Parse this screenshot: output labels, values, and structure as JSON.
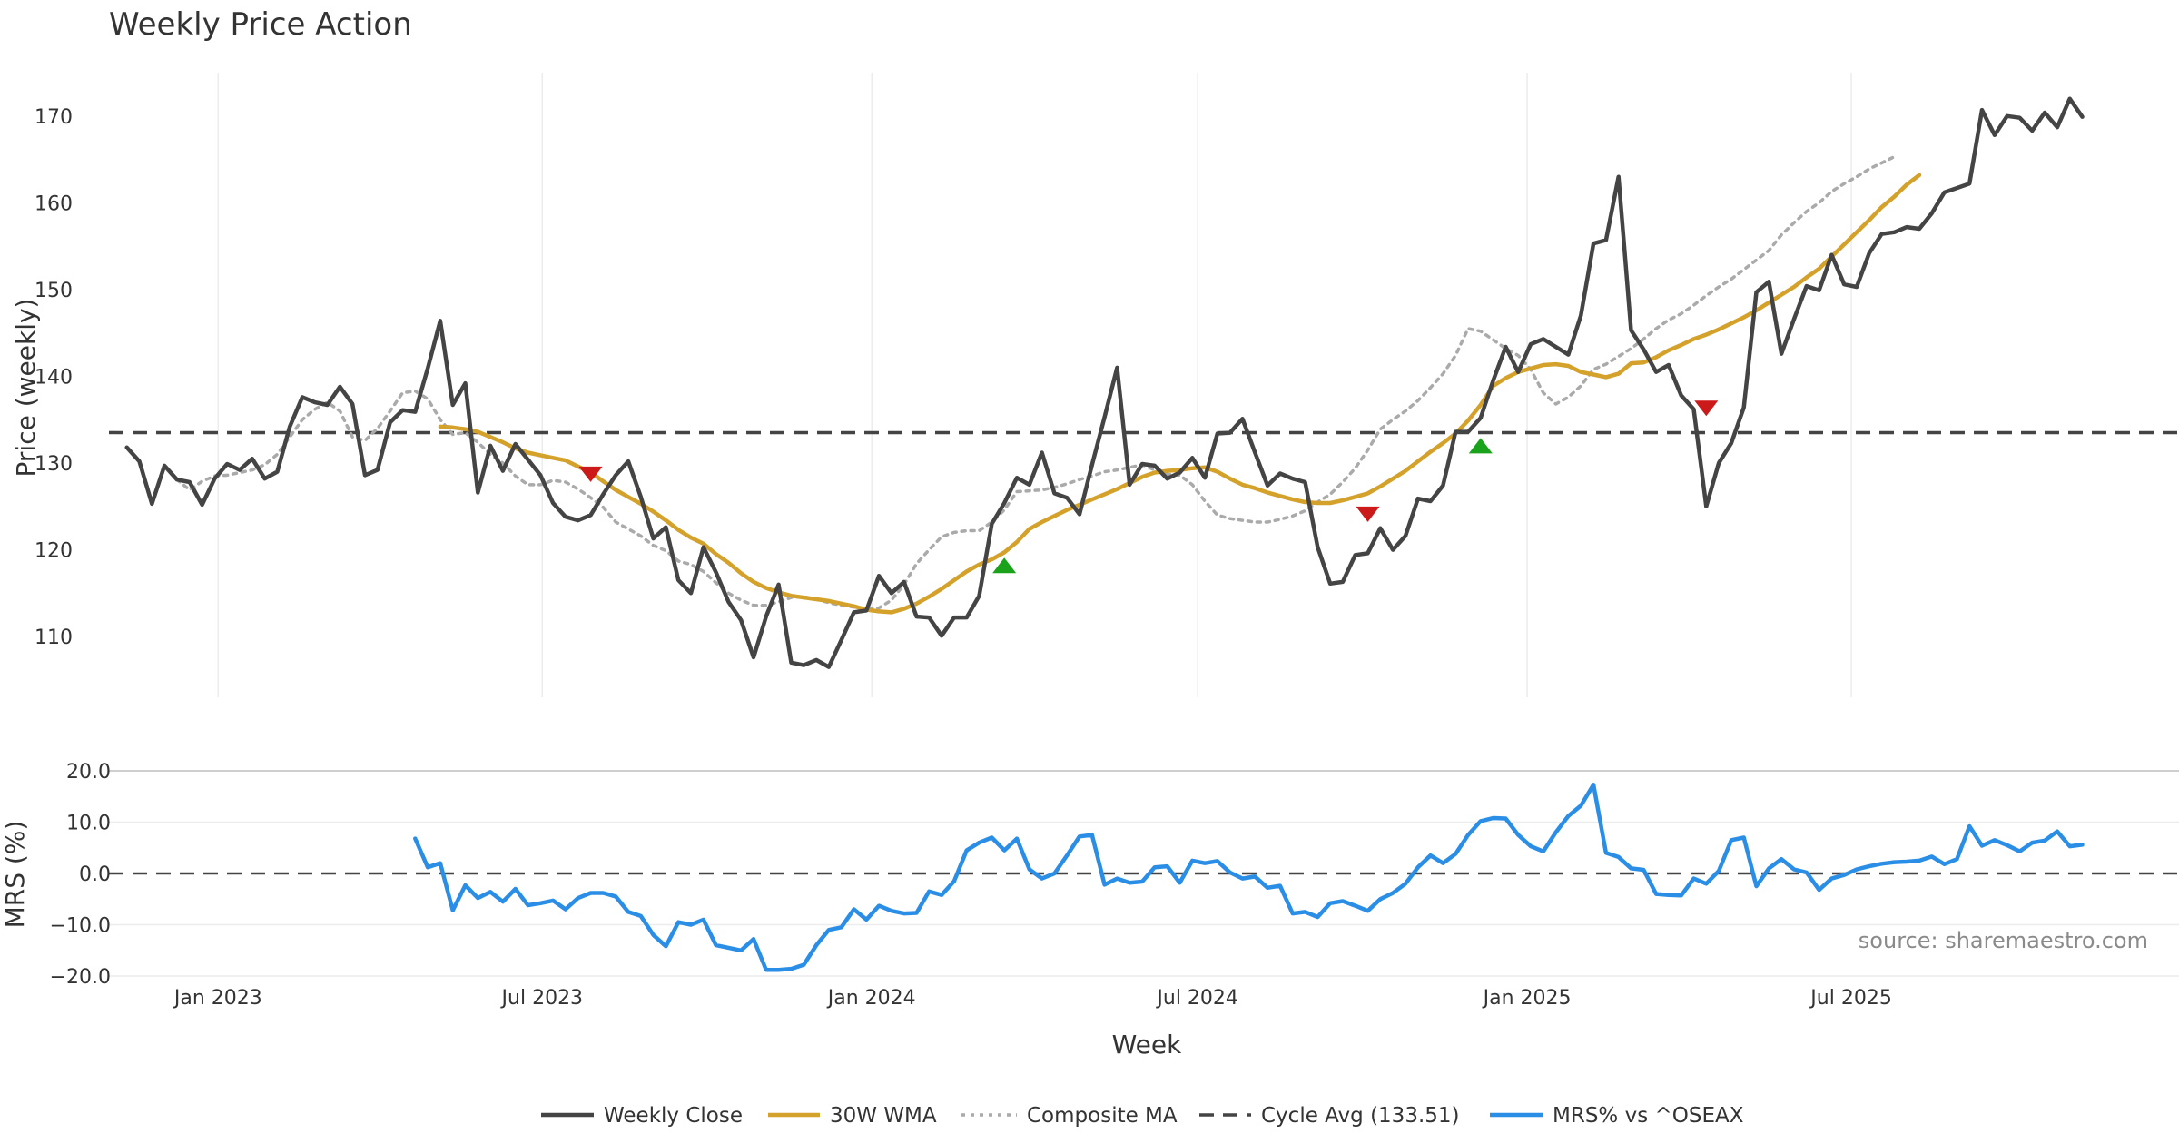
{
  "chart_data": [
    {
      "type": "line",
      "title": "Weekly Price Action",
      "ylabel": "Price (weekly)",
      "xlabel": "",
      "ylim": [
        103,
        175
      ],
      "yticks": [
        110,
        120,
        130,
        140,
        150,
        160,
        170
      ],
      "grid": "vertical",
      "series": [
        {
          "name": "Weekly Close",
          "color": "#444444",
          "style": "solid",
          "x_start": "2022-11-11",
          "step_days": 7,
          "values": [
            131.8,
            130.2,
            125.3,
            129.7,
            128.1,
            127.8,
            125.2,
            128.2,
            129.9,
            129.2,
            130.5,
            128.2,
            129.0,
            134.2,
            137.6,
            137.0,
            136.7,
            138.8,
            136.8,
            128.6,
            129.2,
            134.7,
            136.1,
            135.9,
            140.9,
            146.4,
            136.7,
            139.2,
            126.6,
            132.0,
            129.1,
            132.2,
            130.4,
            128.6,
            125.4,
            123.8,
            123.4,
            124.0,
            126.4,
            128.6,
            130.2,
            126.1,
            121.3,
            122.6,
            116.5,
            115.0,
            120.3,
            117.4,
            114.0,
            111.9,
            107.6,
            112.3,
            116.0,
            107.0,
            106.7,
            107.3,
            106.5,
            109.6,
            112.8,
            113.0,
            117.0,
            115.0,
            116.3,
            112.3,
            112.2,
            110.1,
            112.2,
            112.2,
            114.7,
            123.0,
            125.4,
            128.3,
            127.5,
            131.2,
            126.5,
            126.0,
            124.1,
            129.8,
            135.3,
            141.0,
            127.5,
            129.9,
            129.7,
            128.2,
            128.9,
            130.6,
            128.3,
            133.4,
            133.5,
            135.1,
            131.2,
            127.4,
            128.8,
            128.2,
            127.8,
            120.3,
            116.1,
            116.3,
            119.4,
            119.6,
            122.5,
            120.0,
            121.6,
            125.9,
            125.6,
            127.4,
            133.6,
            133.6,
            135.2,
            139.5,
            143.4,
            140.5,
            143.7,
            144.3,
            143.4,
            142.5,
            147.0,
            155.3,
            155.7,
            163.0,
            145.3,
            143.1,
            140.5,
            141.3,
            137.8,
            136.2,
            125.0,
            130.0,
            132.3,
            136.4,
            149.7,
            150.9,
            142.6,
            146.6,
            150.4,
            149.9,
            154.0,
            150.6,
            150.3,
            154.2,
            156.4,
            156.6,
            157.2,
            157.0,
            158.8,
            161.2,
            161.7,
            162.2,
            170.7,
            167.8,
            170.0,
            169.8,
            168.3,
            170.4,
            168.7,
            172.0,
            169.9
          ]
        },
        {
          "name": "30W WMA",
          "color": "#d4a22b",
          "style": "solid",
          "x_start": "2023-05-05",
          "step_days": 7,
          "values": [
            134.2,
            134.1,
            133.9,
            133.6,
            133.0,
            132.4,
            131.7,
            131.2,
            130.9,
            130.6,
            130.3,
            129.6,
            128.9,
            127.9,
            126.9,
            126.1,
            125.3,
            124.4,
            123.4,
            122.3,
            121.4,
            120.7,
            119.5,
            118.5,
            117.3,
            116.3,
            115.6,
            115.1,
            114.7,
            114.5,
            114.3,
            114.1,
            113.8,
            113.5,
            113.1,
            112.9,
            112.8,
            113.2,
            113.8,
            114.6,
            115.5,
            116.5,
            117.5,
            118.3,
            118.9,
            119.7,
            120.9,
            122.4,
            123.2,
            123.9,
            124.6,
            125.2,
            125.8,
            126.4,
            127.0,
            127.7,
            128.4,
            128.9,
            129.1,
            129.2,
            129.4,
            129.5,
            129.0,
            128.2,
            127.5,
            127.1,
            126.6,
            126.2,
            125.8,
            125.5,
            125.4,
            125.4,
            125.7,
            126.1,
            126.5,
            127.3,
            128.2,
            129.1,
            130.2,
            131.3,
            132.3,
            133.4,
            134.9,
            136.7,
            138.9,
            139.8,
            140.5,
            140.9,
            141.3,
            141.4,
            141.2,
            140.5,
            140.2,
            139.9,
            140.3,
            141.5,
            141.6,
            142.2,
            143.0,
            143.6,
            144.3,
            144.8,
            145.4,
            146.1,
            146.8,
            147.6,
            148.5,
            149.4,
            150.3,
            151.4,
            152.4,
            153.8,
            155.2,
            156.6,
            158.0,
            159.5,
            160.7,
            162.1,
            163.2
          ]
        },
        {
          "name": "Composite MA",
          "color": "#aaaaaa",
          "style": "dotted",
          "x_start": "2022-12-09",
          "step_days": 7,
          "values": [
            128.1,
            126.9,
            127.9,
            128.5,
            128.6,
            128.9,
            129.2,
            129.8,
            131.0,
            133.0,
            135.0,
            136.2,
            137.0,
            136.0,
            133.0,
            132.6,
            134.0,
            136.0,
            138.1,
            138.3,
            137.4,
            135.0,
            133.3,
            133.5,
            132.4,
            131.0,
            130.0,
            128.5,
            127.5,
            127.5,
            128.0,
            127.8,
            127.0,
            126.0,
            124.9,
            123.2,
            122.4,
            121.6,
            120.5,
            119.9,
            118.7,
            118.3,
            117.5,
            116.2,
            115.0,
            114.2,
            113.6,
            113.6,
            114.0,
            114.5,
            114.6,
            114.3,
            113.9,
            113.6,
            113.4,
            113.2,
            113.3,
            114.2,
            116.0,
            118.4,
            120.0,
            121.5,
            122.0,
            122.2,
            122.2,
            123.2,
            124.6,
            126.7,
            126.8,
            126.9,
            127.2,
            127.6,
            128.1,
            128.5,
            129.0,
            129.2,
            129.5,
            129.8,
            129.2,
            128.7,
            128.6,
            127.5,
            125.6,
            124.0,
            123.6,
            123.4,
            123.2,
            123.2,
            123.5,
            123.9,
            124.5,
            125.5,
            126.4,
            127.8,
            129.4,
            131.5,
            133.9,
            135.0,
            136.0,
            137.2,
            138.7,
            140.3,
            142.4,
            145.5,
            145.2,
            144.2,
            143.2,
            142.4,
            140.8,
            138.1,
            136.8,
            137.6,
            138.9,
            140.8,
            141.4,
            142.3,
            143.2,
            144.3,
            145.5,
            146.5,
            147.2,
            148.2,
            149.3,
            150.3,
            151.2,
            152.3,
            153.4,
            154.5,
            156.3,
            157.7,
            159.0,
            160.0,
            161.3,
            162.2,
            163.0,
            163.9,
            164.6,
            165.3
          ]
        },
        {
          "name": "Cycle Avg (133.51)",
          "color": "#444444",
          "style": "dashed",
          "value": 133.51
        }
      ],
      "markers": [
        {
          "kind": "sell",
          "x": "2023-07-28",
          "y": 128.7,
          "color": "#cc1a1a"
        },
        {
          "kind": "buy",
          "x": "2024-03-15",
          "y": 118.2,
          "color": "#1aa31a"
        },
        {
          "kind": "sell",
          "x": "2024-10-04",
          "y": 124.1,
          "color": "#cc1a1a"
        },
        {
          "kind": "buy",
          "x": "2024-12-06",
          "y": 132.0,
          "color": "#1aa31a"
        },
        {
          "kind": "sell",
          "x": "2025-04-11",
          "y": 136.3,
          "color": "#cc1a1a"
        }
      ]
    },
    {
      "type": "line",
      "title": "",
      "ylabel": "MRS (%)",
      "xlabel": "Week",
      "ylim": [
        -20,
        20
      ],
      "yticks": [
        20,
        10,
        0,
        -10,
        -20
      ],
      "ytick_labels": [
        "20.0",
        "10.0",
        "0.0",
        "−10.0",
        "−20.0"
      ],
      "xticks": [
        "2023-01-01",
        "2023-07-01",
        "2024-01-01",
        "2024-07-01",
        "2025-01-01",
        "2025-07-01"
      ],
      "xtick_labels": [
        "Jan 2023",
        "Jul 2023",
        "Jan 2024",
        "Jul 2024",
        "Jan 2025",
        "Jul 2025"
      ],
      "zero_line": "dashed",
      "series": [
        {
          "name": "MRS% vs ^OSEAX",
          "color": "#2b8ee6",
          "style": "solid",
          "x_start": "2023-04-21",
          "step_days": 7,
          "values": [
            6.8,
            1.2,
            2.0,
            -7.2,
            -2.3,
            -4.8,
            -3.6,
            -5.5,
            -3.0,
            -6.2,
            -5.8,
            -5.3,
            -7.0,
            -4.8,
            -3.8,
            -3.8,
            -4.5,
            -7.5,
            -8.3,
            -12.0,
            -14.2,
            -9.5,
            -10.0,
            -9.0,
            -14.0,
            -14.5,
            -15.0,
            -12.8,
            -18.8,
            -18.8,
            -18.6,
            -17.8,
            -14.0,
            -11.0,
            -10.5,
            -7.0,
            -9.0,
            -6.3,
            -7.3,
            -7.8,
            -7.7,
            -3.5,
            -4.2,
            -1.5,
            4.5,
            6.0,
            7.0,
            4.5,
            6.8,
            0.8,
            -1.0,
            0.0,
            3.5,
            7.2,
            7.5,
            -2.2,
            -1.0,
            -1.8,
            -1.6,
            1.2,
            1.4,
            -1.8,
            2.5,
            2.0,
            2.4,
            0.2,
            -1.0,
            -0.6,
            -2.8,
            -2.4,
            -7.8,
            -7.5,
            -8.5,
            -5.8,
            -5.4,
            -6.3,
            -7.3,
            -5.0,
            -3.8,
            -2.0,
            1.2,
            3.5,
            2.0,
            3.8,
            7.5,
            10.2,
            10.8,
            10.7,
            7.5,
            5.3,
            4.3,
            8.0,
            11.2,
            13.2,
            17.3,
            4.0,
            3.2,
            1.0,
            0.7,
            -4.0,
            -4.2,
            -4.3,
            -1.0,
            -2.0,
            0.5,
            6.5,
            7.0,
            -2.5,
            1.0,
            2.8,
            0.8,
            0.2,
            -3.2,
            -1.0,
            -0.3,
            0.8,
            1.4,
            1.9,
            2.2,
            2.3,
            2.5,
            3.3,
            1.8,
            2.8,
            9.2,
            5.4,
            6.5,
            5.5,
            4.3,
            6.0,
            6.4,
            8.2,
            5.3,
            5.6
          ]
        }
      ],
      "annotations": [
        "source: sharemaestro.com"
      ]
    }
  ]
}
